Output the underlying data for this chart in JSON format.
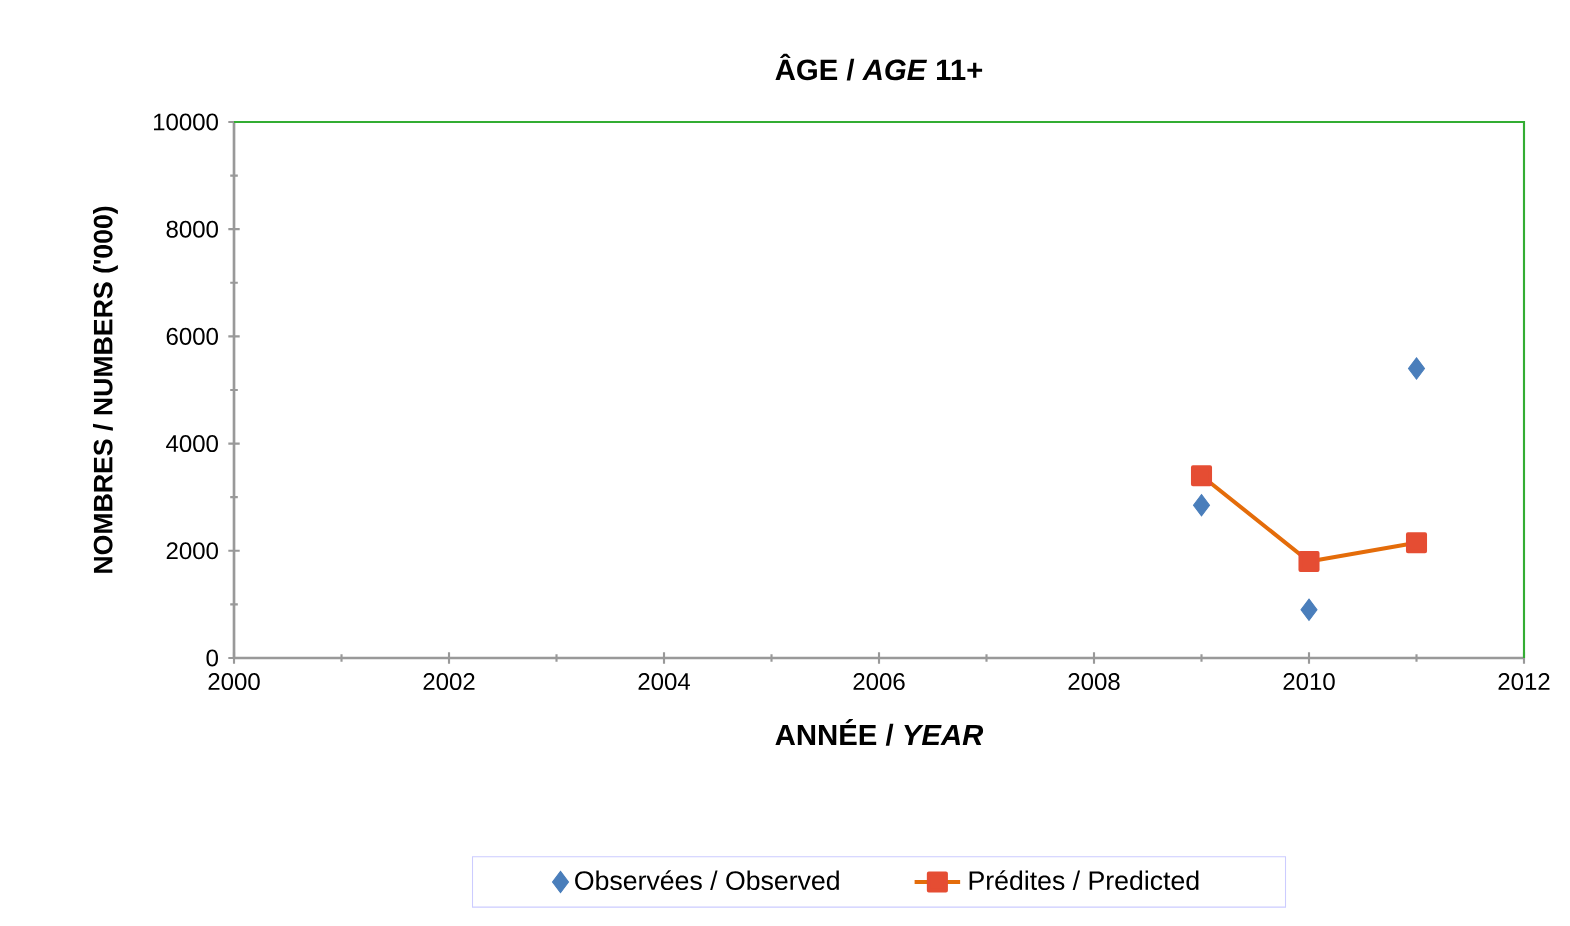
{
  "chart_data": {
    "type": "scatter",
    "title": "ÂGE / *AGE* 11+",
    "xlabel": "ANNÉE / *YEAR*",
    "ylabel": "NOMBRES  /  NUMBERS ('000)",
    "xlim": [
      2000,
      2012
    ],
    "xticks": [
      2000,
      2002,
      2004,
      2006,
      2008,
      2010,
      2012
    ],
    "ylim": [
      0,
      10000
    ],
    "yticks": [
      0,
      2000,
      4000,
      6000,
      8000,
      10000
    ],
    "legend": "bottom",
    "grid": false,
    "series": [
      {
        "name": "Observées / Observed",
        "marker": "diamond",
        "color": "#4a7ebb",
        "x": [
          2009,
          2010,
          2011
        ],
        "values": [
          2850,
          900,
          5400
        ]
      },
      {
        "name": "Prédites / Predicted",
        "type": "line",
        "marker": "square",
        "line_style": "solid",
        "color": "#e46c0a",
        "x": [
          2009,
          2010,
          2011
        ],
        "values": [
          3400,
          1800,
          2150
        ]
      }
    ]
  }
}
